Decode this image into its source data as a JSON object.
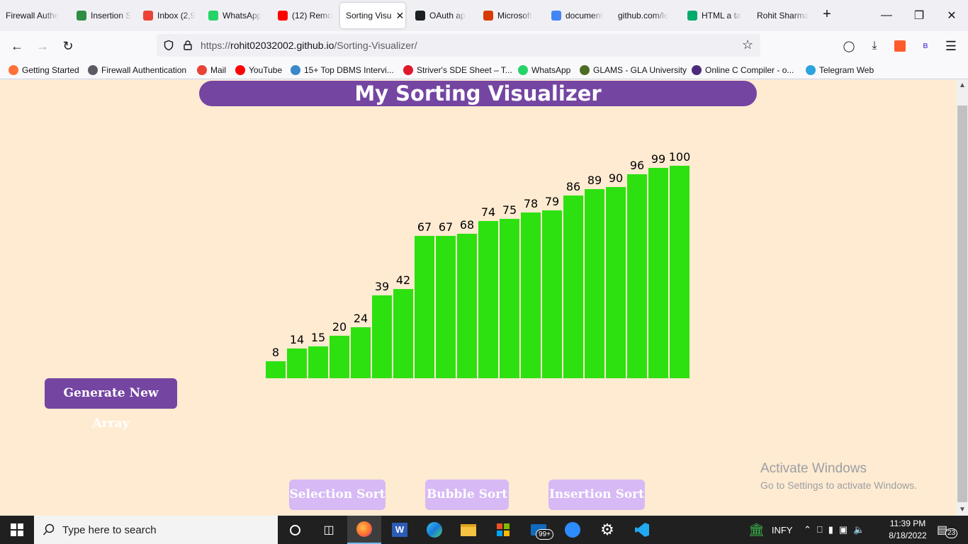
{
  "browser": {
    "tabs": [
      {
        "title": "Firewall Authe",
        "icon": "globe-icon",
        "color": "#f0f0f4"
      },
      {
        "title": "Insertion S",
        "icon": "gfg-icon",
        "color": "#2f8d46"
      },
      {
        "title": "Inbox (2,9",
        "icon": "gmail-icon",
        "color": "#ea4335"
      },
      {
        "title": "WhatsApp",
        "icon": "whatsapp-icon",
        "color": "#25d366"
      },
      {
        "title": "(12) Remo",
        "icon": "youtube-icon",
        "color": "#ff0000"
      },
      {
        "title": "Sorting Visu",
        "icon": "page-icon",
        "color": "#ffffff"
      },
      {
        "title": "OAuth ap",
        "icon": "github-icon",
        "color": "#1b1f23"
      },
      {
        "title": "Microsoft",
        "icon": "office-icon",
        "color": "#d83b01"
      },
      {
        "title": "document",
        "icon": "google-icon",
        "color": "#4285f4"
      },
      {
        "title": "github.com/lo",
        "icon": "page-icon",
        "color": "#ffffff"
      },
      {
        "title": "HTML a ta",
        "icon": "w3-icon",
        "color": "#04aa6d"
      },
      {
        "title": "Rohit Sharma",
        "icon": "page-icon",
        "color": "#ffffff"
      }
    ],
    "active_tab_index": 5,
    "url_host": "rohit02032002.github.io",
    "url_prefix": "https://",
    "url_path": "/Sorting-Visualizer/",
    "bookmarks": [
      {
        "label": "Getting Started",
        "icon": "firefox-icon",
        "color": "#ff7139"
      },
      {
        "label": "Firewall Authentication",
        "icon": "globe-icon",
        "color": "#5b5b66"
      },
      {
        "label": "Mail",
        "icon": "gmail-icon",
        "color": "#ea4335"
      },
      {
        "label": "YouTube",
        "icon": "youtube-icon",
        "color": "#ff0000"
      },
      {
        "label": "15+ Top DBMS Intervi...",
        "icon": "page-icon",
        "color": "#3a87c9"
      },
      {
        "label": "Striver's SDE Sheet – T...",
        "icon": "tuf-icon",
        "color": "#e0182d"
      },
      {
        "label": "WhatsApp",
        "icon": "whatsapp-icon",
        "color": "#25d366"
      },
      {
        "label": "GLAMS - GLA University",
        "icon": "gla-icon",
        "color": "#4e6b23"
      },
      {
        "label": "Online C Compiler - o...",
        "icon": "compiler-icon",
        "color": "#4b2a7b"
      },
      {
        "label": "Telegram Web",
        "icon": "telegram-icon",
        "color": "#2aa3df"
      }
    ],
    "profile_initial": "B"
  },
  "page": {
    "title": "My Sorting Visualizer",
    "generate_label": "Generate New Array",
    "sort_buttons": [
      "Selection Sort",
      "Bubble Sort",
      "Insertion Sort"
    ],
    "bar_color": "#2de111",
    "accent_color": "#7545a2",
    "disabled_color": "#d7b9f5",
    "background_color": "#ffebd1"
  },
  "chart_data": {
    "type": "bar",
    "values": [
      8,
      14,
      15,
      20,
      24,
      39,
      42,
      67,
      67,
      68,
      74,
      75,
      78,
      79,
      86,
      89,
      90,
      96,
      99,
      100
    ],
    "ylim": [
      0,
      100
    ]
  },
  "watermark": {
    "line1": "Activate Windows",
    "line2": "Go to Settings to activate Windows."
  },
  "taskbar": {
    "search_placeholder": "Type here to search",
    "mail_badge": "99+",
    "stock": "INFY",
    "time": "11:39 PM",
    "date": "8/18/2022",
    "notification_count": "23"
  }
}
